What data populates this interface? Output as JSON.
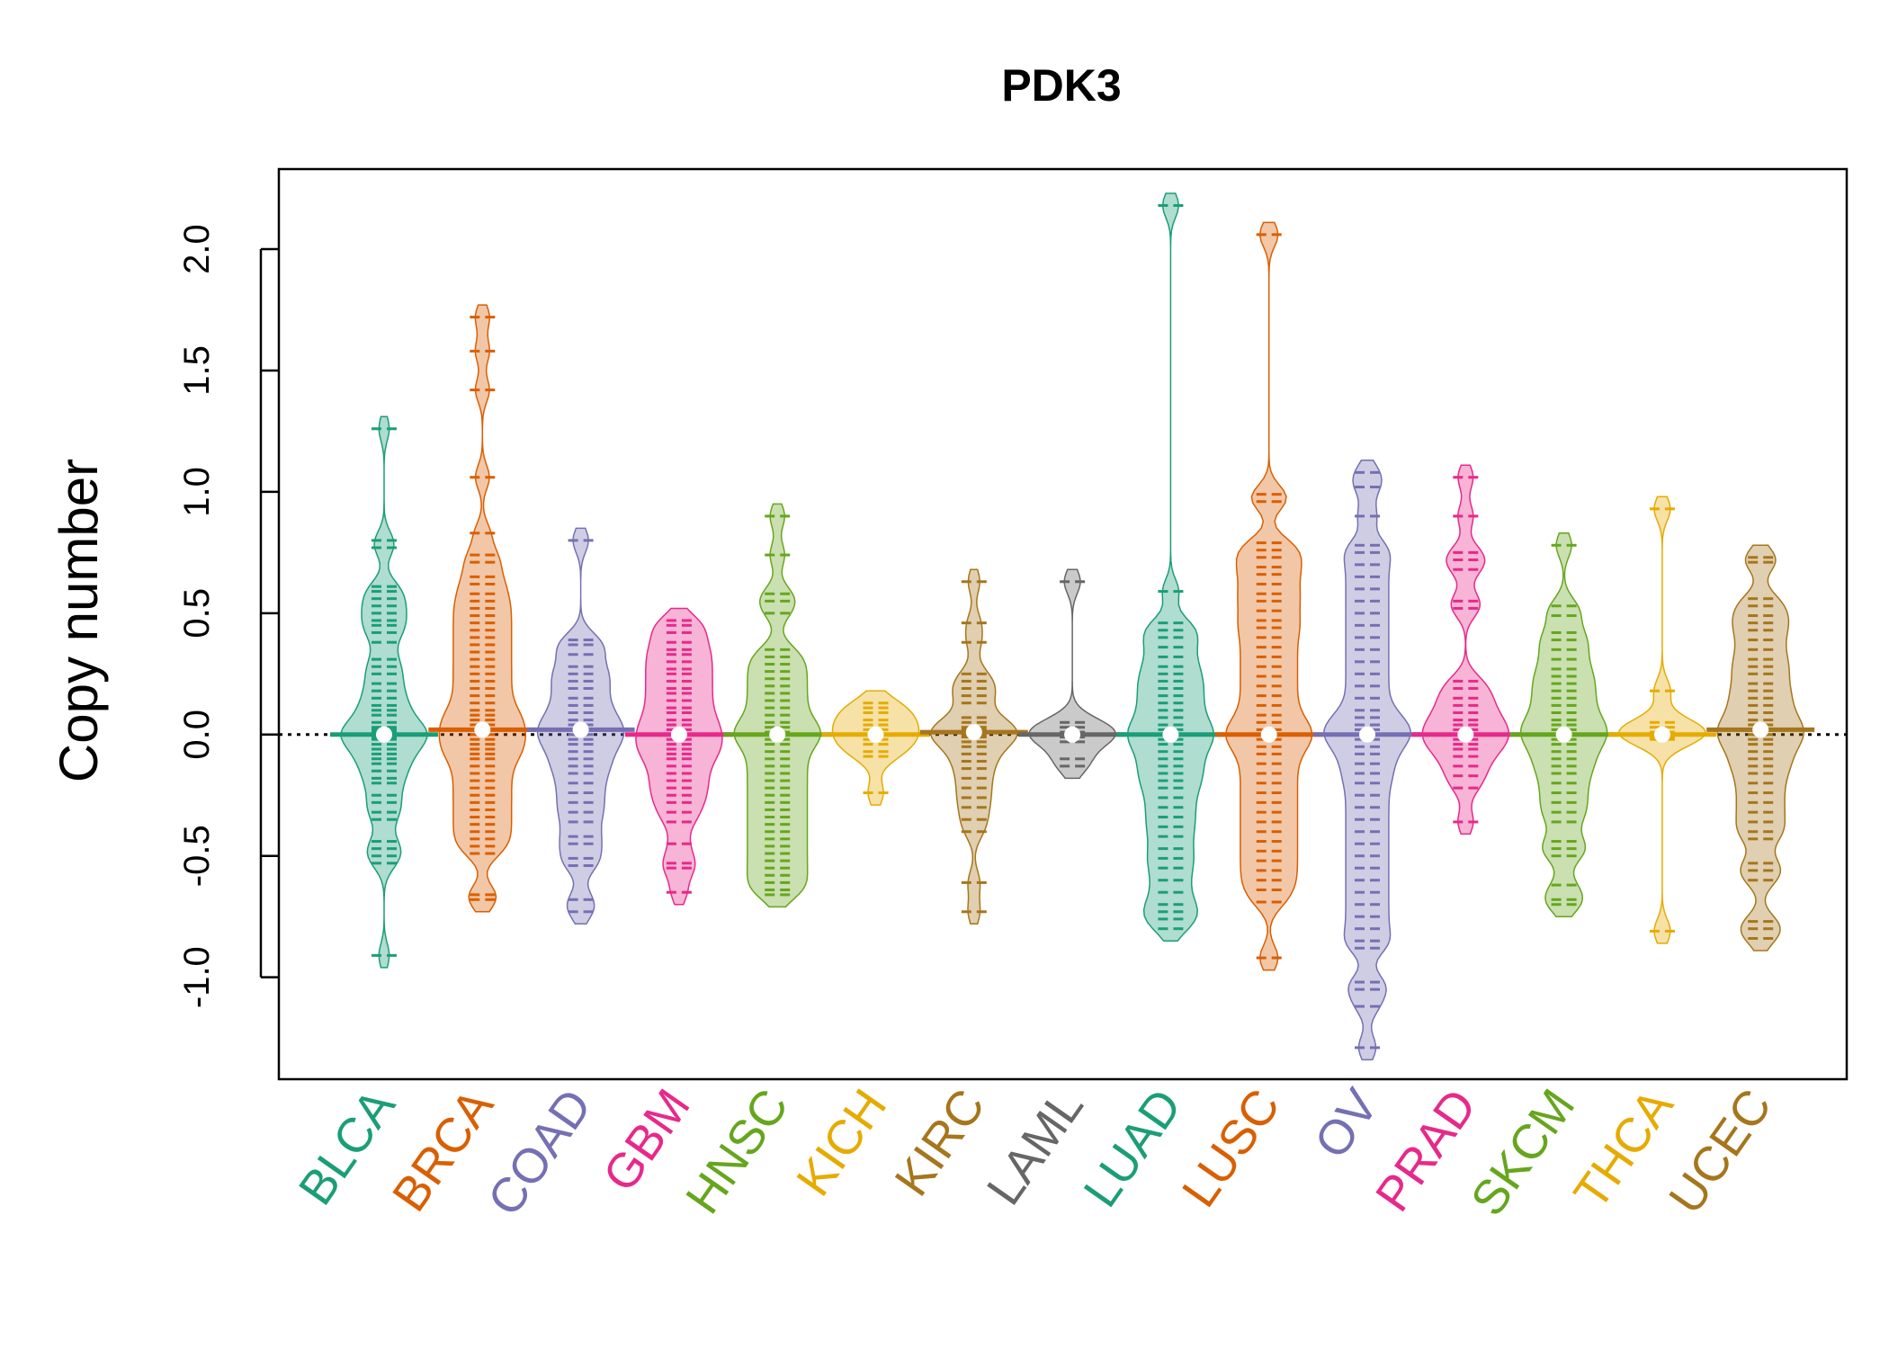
{
  "chart_data": {
    "type": "scatter",
    "style": "beanplot",
    "title": "PDK3",
    "xlabel": "",
    "ylabel": "Copy number",
    "ylim": [
      -1.42,
      2.33
    ],
    "yticks": [
      "-1.0",
      "-0.5",
      "0.0",
      "0.5",
      "1.0",
      "1.5",
      "2.0"
    ],
    "reference_line": 0.0,
    "series": [
      {
        "name": "BLCA",
        "color": "#1B9E77",
        "median": 0.0,
        "values": [
          1.26,
          0.8,
          0.77,
          0.61,
          0.59,
          0.56,
          0.53,
          0.5,
          0.47,
          0.45,
          0.42,
          0.38,
          0.31,
          0.28,
          0.25,
          0.21,
          0.18,
          0.15,
          0.12,
          0.1,
          0.08,
          0.05,
          0.03,
          0.02,
          0.01,
          0.0,
          -0.01,
          -0.02,
          -0.04,
          -0.06,
          -0.08,
          -0.1,
          -0.12,
          -0.15,
          -0.18,
          -0.2,
          -0.25,
          -0.28,
          -0.32,
          -0.35,
          -0.44,
          -0.47,
          -0.5,
          -0.53,
          -0.91
        ]
      },
      {
        "name": "BRCA",
        "color": "#D95F02",
        "median": 0.02,
        "values": [
          1.72,
          1.58,
          1.42,
          1.06,
          0.83,
          0.74,
          0.71,
          0.65,
          0.62,
          0.58,
          0.55,
          0.52,
          0.49,
          0.46,
          0.43,
          0.4,
          0.37,
          0.34,
          0.31,
          0.28,
          0.25,
          0.22,
          0.19,
          0.16,
          0.13,
          0.1,
          0.08,
          0.06,
          0.04,
          0.02,
          0.0,
          -0.02,
          -0.04,
          -0.06,
          -0.08,
          -0.1,
          -0.13,
          -0.16,
          -0.19,
          -0.22,
          -0.25,
          -0.28,
          -0.31,
          -0.34,
          -0.37,
          -0.4,
          -0.43,
          -0.46,
          -0.49,
          -0.66,
          -0.68
        ]
      },
      {
        "name": "COAD",
        "color": "#7570B3",
        "median": 0.02,
        "values": [
          0.8,
          0.39,
          0.37,
          0.33,
          0.28,
          0.25,
          0.22,
          0.19,
          0.15,
          0.12,
          0.09,
          0.06,
          0.04,
          0.02,
          0.0,
          -0.02,
          -0.04,
          -0.07,
          -0.1,
          -0.13,
          -0.16,
          -0.2,
          -0.24,
          -0.28,
          -0.32,
          -0.36,
          -0.42,
          -0.45,
          -0.51,
          -0.54,
          -0.68,
          -0.73
        ]
      },
      {
        "name": "GBM",
        "color": "#E7298A",
        "median": 0.0,
        "values": [
          0.47,
          0.45,
          0.42,
          0.38,
          0.35,
          0.33,
          0.3,
          0.27,
          0.25,
          0.22,
          0.19,
          0.17,
          0.14,
          0.11,
          0.09,
          0.06,
          0.04,
          0.02,
          0.0,
          -0.02,
          -0.04,
          -0.06,
          -0.08,
          -0.1,
          -0.13,
          -0.16,
          -0.19,
          -0.22,
          -0.25,
          -0.28,
          -0.32,
          -0.36,
          -0.45,
          -0.53,
          -0.55,
          -0.65
        ]
      },
      {
        "name": "HNSC",
        "color": "#66A61E",
        "median": 0.0,
        "values": [
          0.9,
          0.74,
          0.58,
          0.55,
          0.5,
          0.35,
          0.32,
          0.29,
          0.26,
          0.23,
          0.2,
          0.17,
          0.14,
          0.11,
          0.08,
          0.05,
          0.03,
          0.01,
          0.0,
          -0.02,
          -0.04,
          -0.07,
          -0.1,
          -0.13,
          -0.16,
          -0.19,
          -0.22,
          -0.25,
          -0.28,
          -0.31,
          -0.34,
          -0.37,
          -0.4,
          -0.43,
          -0.46,
          -0.49,
          -0.52,
          -0.55,
          -0.58,
          -0.61,
          -0.64,
          -0.66
        ]
      },
      {
        "name": "KICH",
        "color": "#E6AB02",
        "median": 0.0,
        "values": [
          0.13,
          0.11,
          0.09,
          0.06,
          0.04,
          0.02,
          0.0,
          -0.02,
          -0.04,
          -0.07,
          -0.09,
          -0.24
        ]
      },
      {
        "name": "KIRC",
        "color": "#A6761D",
        "median": 0.01,
        "values": [
          0.63,
          0.46,
          0.38,
          0.25,
          0.22,
          0.19,
          0.16,
          0.13,
          0.07,
          0.05,
          0.03,
          0.02,
          0.01,
          0.0,
          -0.01,
          -0.03,
          -0.05,
          -0.08,
          -0.11,
          -0.14,
          -0.18,
          -0.22,
          -0.26,
          -0.3,
          -0.35,
          -0.4,
          -0.61,
          -0.73
        ]
      },
      {
        "name": "LAML",
        "color": "#666666",
        "median": 0.0,
        "values": [
          0.63,
          0.05,
          0.03,
          0.01,
          0.0,
          -0.01,
          -0.03,
          -0.1,
          -0.13
        ]
      },
      {
        "name": "LUAD",
        "color": "#1B9E77",
        "median": 0.0,
        "values": [
          2.18,
          0.59,
          0.46,
          0.43,
          0.4,
          0.36,
          0.32,
          0.28,
          0.25,
          0.22,
          0.19,
          0.16,
          0.13,
          0.1,
          0.07,
          0.04,
          0.02,
          0.0,
          -0.02,
          -0.04,
          -0.07,
          -0.1,
          -0.13,
          -0.16,
          -0.19,
          -0.22,
          -0.26,
          -0.3,
          -0.34,
          -0.38,
          -0.42,
          -0.47,
          -0.51,
          -0.55,
          -0.6,
          -0.65,
          -0.7,
          -0.73,
          -0.76,
          -0.8
        ]
      },
      {
        "name": "LUSC",
        "color": "#D95F02",
        "median": 0.0,
        "values": [
          2.06,
          0.99,
          0.96,
          0.79,
          0.76,
          0.73,
          0.69,
          0.66,
          0.62,
          0.58,
          0.55,
          0.51,
          0.47,
          0.44,
          0.4,
          0.36,
          0.32,
          0.28,
          0.24,
          0.2,
          0.16,
          0.12,
          0.08,
          0.05,
          0.02,
          0.0,
          -0.02,
          -0.05,
          -0.08,
          -0.12,
          -0.16,
          -0.2,
          -0.24,
          -0.28,
          -0.32,
          -0.36,
          -0.4,
          -0.44,
          -0.48,
          -0.52,
          -0.56,
          -0.6,
          -0.64,
          -0.69,
          -0.92
        ]
      },
      {
        "name": "OV",
        "color": "#7570B3",
        "median": 0.0,
        "values": [
          1.08,
          1.02,
          0.9,
          0.78,
          0.75,
          0.7,
          0.65,
          0.6,
          0.55,
          0.5,
          0.45,
          0.4,
          0.35,
          0.3,
          0.25,
          0.2,
          0.15,
          0.1,
          0.07,
          0.04,
          0.02,
          0.0,
          -0.02,
          -0.05,
          -0.08,
          -0.12,
          -0.16,
          -0.2,
          -0.25,
          -0.3,
          -0.35,
          -0.4,
          -0.45,
          -0.5,
          -0.55,
          -0.6,
          -0.65,
          -0.7,
          -0.75,
          -0.8,
          -0.85,
          -0.88,
          -1.02,
          -1.05,
          -1.12,
          -1.29
        ]
      },
      {
        "name": "PRAD",
        "color": "#E7298A",
        "median": 0.0,
        "values": [
          1.06,
          0.9,
          0.75,
          0.72,
          0.68,
          0.55,
          0.52,
          0.22,
          0.19,
          0.15,
          0.12,
          0.09,
          0.06,
          0.04,
          0.02,
          0.0,
          -0.02,
          -0.04,
          -0.06,
          -0.09,
          -0.13,
          -0.17,
          -0.22,
          -0.36
        ]
      },
      {
        "name": "SKCM",
        "color": "#66A61E",
        "median": 0.0,
        "values": [
          0.78,
          0.53,
          0.49,
          0.42,
          0.39,
          0.35,
          0.31,
          0.27,
          0.24,
          0.21,
          0.18,
          0.15,
          0.12,
          0.09,
          0.06,
          0.04,
          0.02,
          0.0,
          -0.02,
          -0.04,
          -0.07,
          -0.1,
          -0.13,
          -0.16,
          -0.2,
          -0.24,
          -0.28,
          -0.32,
          -0.36,
          -0.44,
          -0.47,
          -0.5,
          -0.62,
          -0.68,
          -0.7
        ]
      },
      {
        "name": "THCA",
        "color": "#E6AB02",
        "median": 0.0,
        "values": [
          0.93,
          0.18,
          0.05,
          0.03,
          0.01,
          0.0,
          -0.01,
          -0.02,
          -0.81
        ]
      },
      {
        "name": "UCEC",
        "color": "#A6761D",
        "median": 0.02,
        "values": [
          0.73,
          0.71,
          0.56,
          0.53,
          0.49,
          0.46,
          0.43,
          0.39,
          0.35,
          0.31,
          0.28,
          0.25,
          0.21,
          0.18,
          0.15,
          0.12,
          0.09,
          0.06,
          0.04,
          0.02,
          0.0,
          -0.02,
          -0.04,
          -0.07,
          -0.1,
          -0.13,
          -0.16,
          -0.2,
          -0.24,
          -0.28,
          -0.32,
          -0.36,
          -0.4,
          -0.43,
          -0.53,
          -0.56,
          -0.6,
          -0.77,
          -0.8,
          -0.84
        ]
      }
    ]
  }
}
